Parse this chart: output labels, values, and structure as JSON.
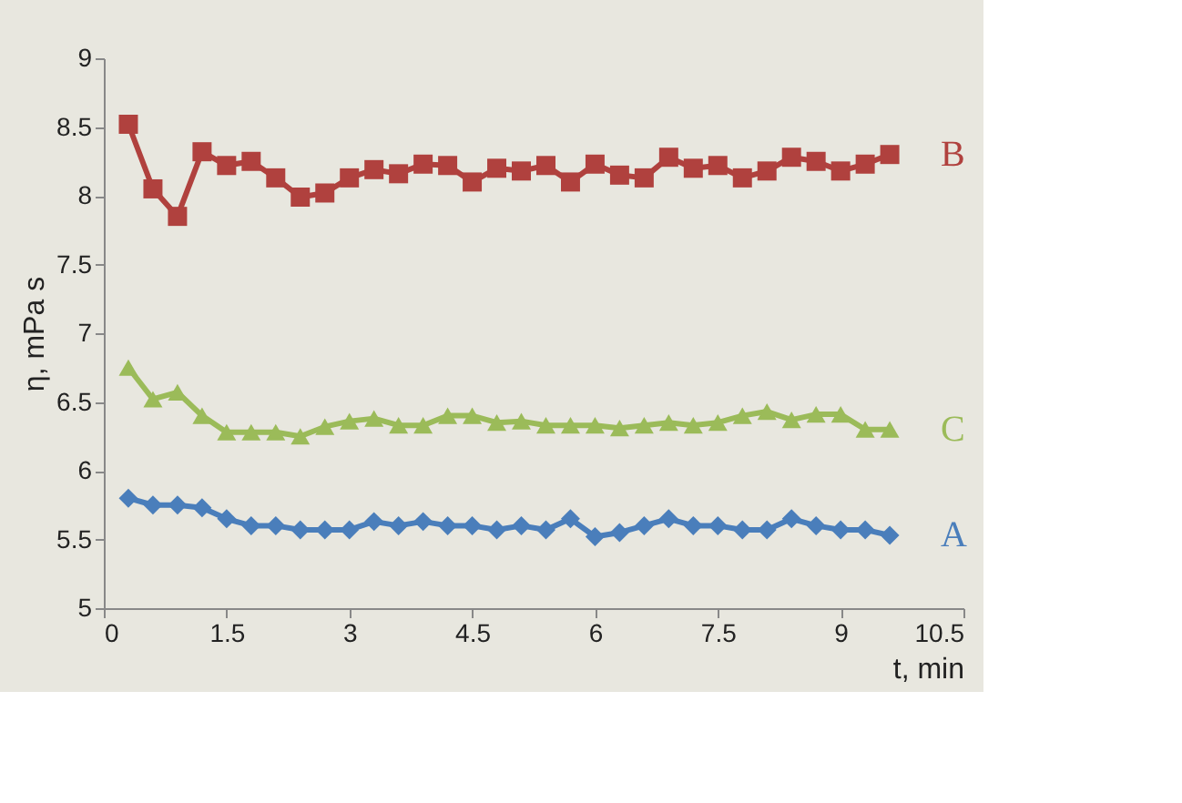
{
  "chart_data": {
    "type": "line",
    "xlabel": "t, min",
    "ylabel": "η, mPa s",
    "x": [
      0.3,
      0.6,
      0.9,
      1.2,
      1.5,
      1.8,
      2.1,
      2.4,
      2.7,
      3.0,
      3.3,
      3.6,
      3.9,
      4.2,
      4.5,
      4.8,
      5.1,
      5.4,
      5.7,
      6.0,
      6.3,
      6.6,
      6.9,
      7.2,
      7.5,
      7.8,
      8.1,
      8.4,
      8.7,
      9.0,
      9.3,
      9.6
    ],
    "series": [
      {
        "name": "B",
        "color": "#b0413e",
        "marker": "square",
        "values": [
          8.52,
          8.05,
          7.85,
          8.32,
          8.22,
          8.25,
          8.13,
          7.99,
          8.02,
          8.13,
          8.19,
          8.16,
          8.23,
          8.22,
          8.1,
          8.2,
          8.18,
          8.22,
          8.1,
          8.23,
          8.15,
          8.13,
          8.28,
          8.2,
          8.22,
          8.13,
          8.18,
          8.28,
          8.25,
          8.18,
          8.23,
          8.3
        ]
      },
      {
        "name": "C",
        "color": "#9bbb59",
        "marker": "triangle",
        "values": [
          6.75,
          6.52,
          6.57,
          6.4,
          6.28,
          6.28,
          6.28,
          6.25,
          6.32,
          6.36,
          6.38,
          6.33,
          6.33,
          6.4,
          6.4,
          6.35,
          6.36,
          6.33,
          6.33,
          6.33,
          6.31,
          6.33,
          6.35,
          6.33,
          6.35,
          6.4,
          6.43,
          6.37,
          6.41,
          6.41,
          6.3,
          6.3
        ]
      },
      {
        "name": "A",
        "color": "#4a7ebb",
        "marker": "diamond",
        "values": [
          5.8,
          5.75,
          5.75,
          5.73,
          5.65,
          5.6,
          5.6,
          5.57,
          5.57,
          5.57,
          5.63,
          5.6,
          5.63,
          5.6,
          5.6,
          5.57,
          5.6,
          5.57,
          5.65,
          5.52,
          5.55,
          5.6,
          5.65,
          5.6,
          5.6,
          5.57,
          5.57,
          5.65,
          5.6,
          5.57,
          5.57,
          5.53
        ]
      }
    ],
    "xlim": [
      0,
      10.5
    ],
    "xticks": [
      0,
      1.5,
      3,
      4.5,
      6,
      7.5,
      9,
      10.5
    ],
    "ylim": [
      5,
      9
    ],
    "yticks": [
      5,
      5.5,
      6,
      6.5,
      7,
      7.5,
      8,
      8.5,
      9
    ],
    "grid": false
  }
}
